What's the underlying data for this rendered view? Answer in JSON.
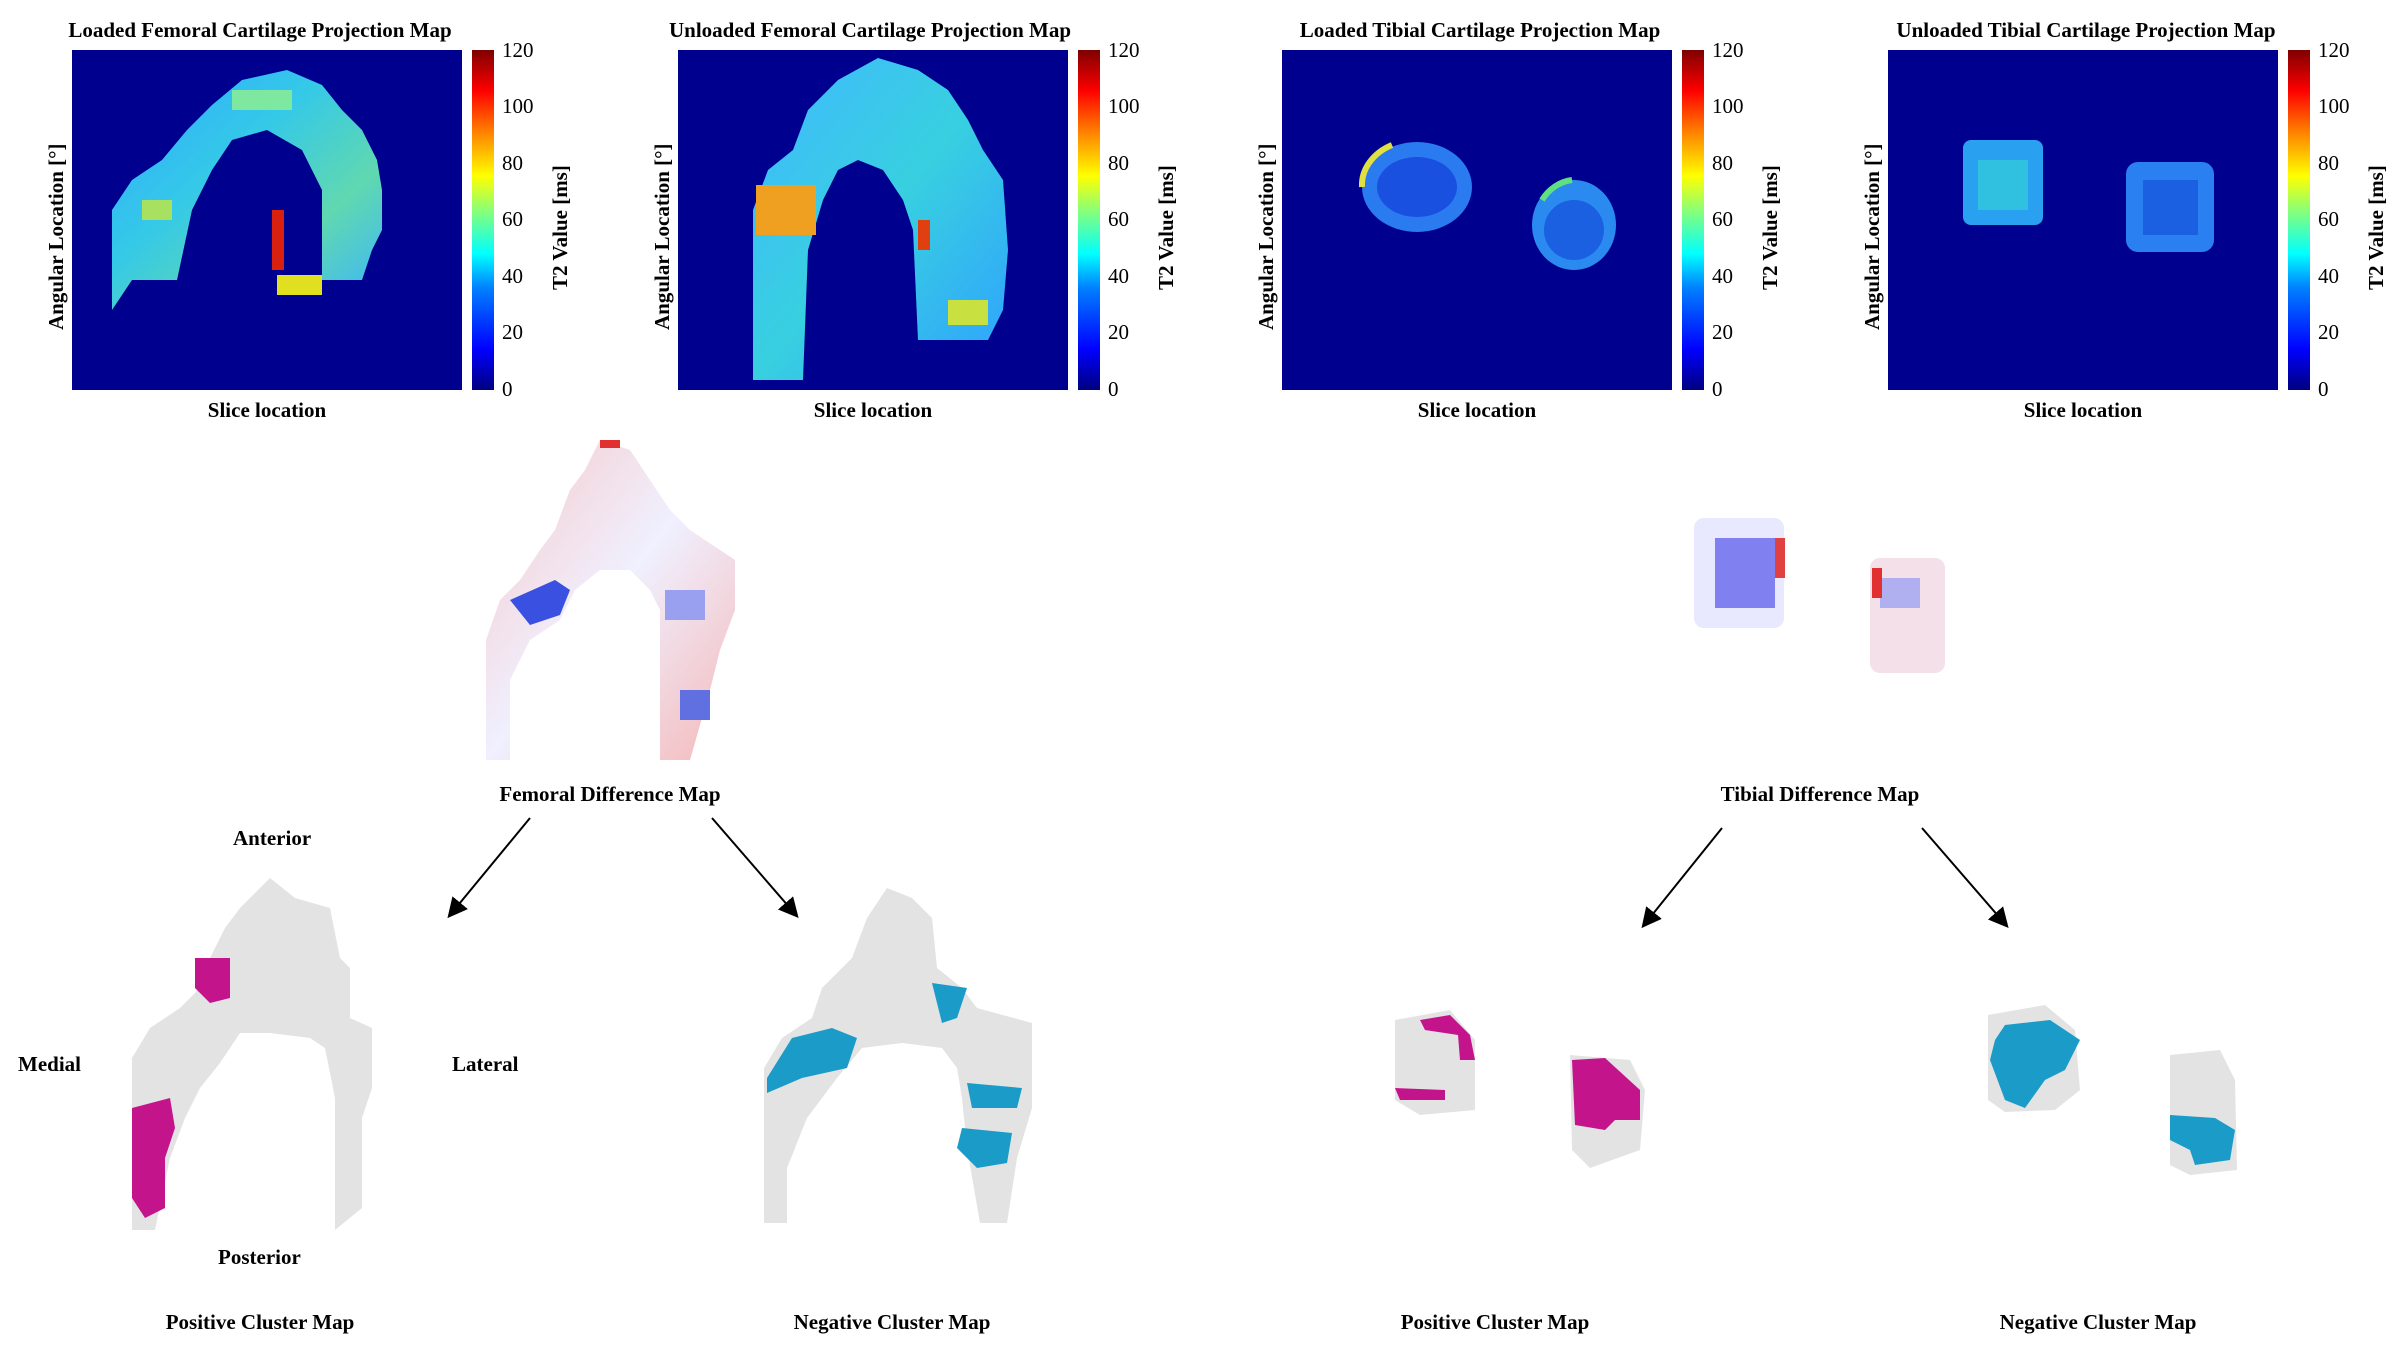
{
  "panels": [
    {
      "title": "Loaded Femoral Cartilage Projection Map",
      "xlabel": "Slice location",
      "ylabel": "Angular Location [°]",
      "cbar_label": "T2 Value [ms]"
    },
    {
      "title": "Unloaded Femoral Cartilage Projection Map",
      "xlabel": "Slice location",
      "ylabel": "Angular Location [°]",
      "cbar_label": "T2 Value [ms]"
    },
    {
      "title": "Loaded Tibial Cartilage Projection Map",
      "xlabel": "Slice location",
      "ylabel": "Angular Location [°]",
      "cbar_label": "T2 Value [ms]"
    },
    {
      "title": "Unloaded Tibial Cartilage Projection Map",
      "xlabel": "Slice location",
      "ylabel": "Angular Location [°]",
      "cbar_label": "T2 Value [ms]"
    }
  ],
  "colorbar_ticks": [
    "120",
    "100",
    "80",
    "60",
    "40",
    "20",
    "0"
  ],
  "colorbar_range": [
    0,
    120
  ],
  "difference_maps": {
    "femoral": "Femoral Difference Map",
    "tibial": "Tibial Difference Map"
  },
  "cluster_maps": {
    "femoral_positive": "Positive Cluster Map",
    "femoral_negative": "Negative Cluster Map",
    "tibial_positive": "Positive Cluster Map",
    "tibial_negative": "Negative Cluster Map"
  },
  "orientation": {
    "anterior": "Anterior",
    "posterior": "Posterior",
    "medial": "Medial",
    "lateral": "Lateral"
  },
  "colors": {
    "background_map": "#00008f",
    "positive_cluster": "#c4148c",
    "negative_cluster": "#1a9bc8",
    "cartilage_gray": "#e3e3e3"
  }
}
